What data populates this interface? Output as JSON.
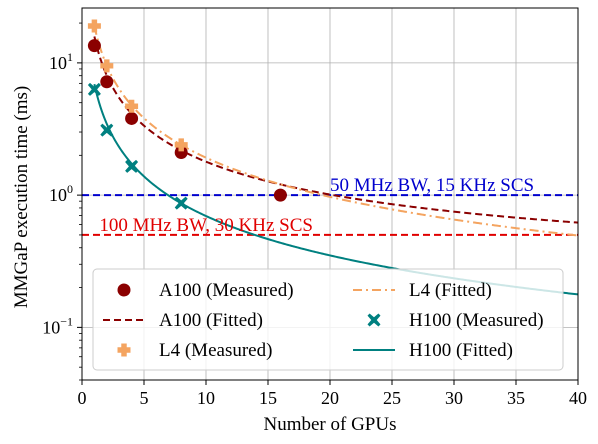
{
  "chart_data": {
    "type": "line",
    "title": "",
    "xlabel": "Number of GPUs",
    "ylabel": "MMGaP execution time (ms)",
    "xlim": [
      0,
      40
    ],
    "ylim": [
      0.04,
      26
    ],
    "yscale": "log",
    "grid": true,
    "legend_position": "lower-left",
    "xticks": [
      0,
      5,
      10,
      15,
      20,
      25,
      30,
      35,
      40
    ],
    "yticks": [
      {
        "value": 0.1,
        "base": "10",
        "exp": "−1"
      },
      {
        "value": 1,
        "base": "10",
        "exp": "0"
      },
      {
        "value": 10,
        "base": "10",
        "exp": "1"
      }
    ],
    "series": [
      {
        "name": "A100 (Measured)",
        "kind": "scatter",
        "marker": "circle",
        "color": "#8b0000",
        "x": [
          1,
          2,
          4,
          8,
          16
        ],
        "y": [
          13.5,
          7.2,
          3.8,
          2.1,
          1.0
        ]
      },
      {
        "name": "A100 (Fitted)",
        "kind": "line",
        "dash": "dashed",
        "color": "#8b0000",
        "fit": {
          "a": 15.6,
          "b": 0.23
        }
      },
      {
        "name": "L4 (Measured)",
        "kind": "scatter",
        "marker": "plus",
        "color": "#f4a460",
        "x": [
          1,
          2,
          4,
          8
        ],
        "y": [
          19.0,
          9.5,
          4.7,
          2.4
        ]
      },
      {
        "name": "L4 (Fitted)",
        "kind": "line",
        "dash": "dashdot",
        "color": "#f4a460",
        "fit": {
          "a": 19.0,
          "b": 0.02
        }
      },
      {
        "name": "H100 (Measured)",
        "kind": "scatter",
        "marker": "x",
        "color": "#008080",
        "x": [
          1,
          2,
          4,
          8
        ],
        "y": [
          6.3,
          3.1,
          1.65,
          0.87
        ]
      },
      {
        "name": "H100 (Fitted)",
        "kind": "line",
        "dash": "solid",
        "color": "#008080",
        "fit": {
          "a": 6.9,
          "b": 0.005
        }
      }
    ],
    "reference_lines": [
      {
        "label": "50 MHz BW, 15 KHz SCS",
        "y": 1.0,
        "color": "#0000cd"
      },
      {
        "label": "100 MHz BW, 30 KHz SCS",
        "y": 0.5,
        "color": "#e00000"
      }
    ]
  }
}
